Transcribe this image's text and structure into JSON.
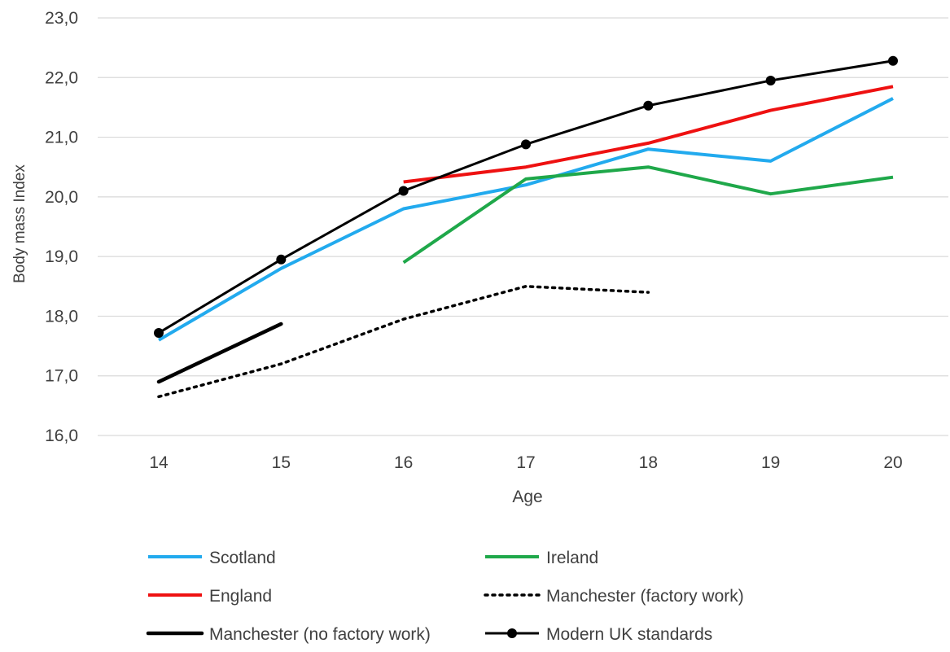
{
  "chart_data": {
    "type": "line",
    "xlabel": "Age",
    "ylabel": "Body mass Index",
    "x": [
      14,
      15,
      16,
      17,
      18,
      19,
      20
    ],
    "x_tick_labels": [
      "14",
      "15",
      "16",
      "17",
      "18",
      "19",
      "20"
    ],
    "ylim": [
      16.0,
      23.0
    ],
    "y_ticks": [
      16.0,
      17.0,
      18.0,
      19.0,
      20.0,
      21.0,
      22.0,
      23.0
    ],
    "y_tick_labels": [
      "16,0",
      "17,0",
      "18,0",
      "19,0",
      "20,0",
      "21,0",
      "22,0",
      "23,0"
    ],
    "grid": "horizontal",
    "legend_position": "bottom",
    "series": [
      {
        "name": "Scotland",
        "color": "#22aaee",
        "style": "solid",
        "markers": false,
        "values": [
          17.6,
          18.8,
          19.8,
          20.2,
          20.8,
          20.6,
          21.65
        ]
      },
      {
        "name": "Ireland",
        "color": "#1fa84a",
        "style": "solid",
        "markers": false,
        "values": [
          null,
          null,
          18.9,
          20.3,
          20.5,
          20.05,
          20.33
        ]
      },
      {
        "name": "England",
        "color": "#ee1111",
        "style": "solid",
        "markers": false,
        "values": [
          null,
          null,
          20.25,
          20.5,
          20.9,
          21.45,
          21.85
        ]
      },
      {
        "name": "Manchester (factory work)",
        "color": "#000000",
        "style": "dotted",
        "markers": false,
        "values": [
          16.65,
          17.2,
          17.95,
          18.5,
          18.4,
          null,
          null
        ]
      },
      {
        "name": "Manchester (no factory work)",
        "color": "#000000",
        "style": "solid-thick",
        "markers": false,
        "values": [
          16.9,
          17.87,
          null,
          null,
          null,
          null,
          null
        ]
      },
      {
        "name": "Modern UK standards",
        "color": "#000000",
        "style": "solid",
        "markers": true,
        "values": [
          17.72,
          18.95,
          20.1,
          20.88,
          21.53,
          21.95,
          22.28
        ]
      }
    ]
  }
}
